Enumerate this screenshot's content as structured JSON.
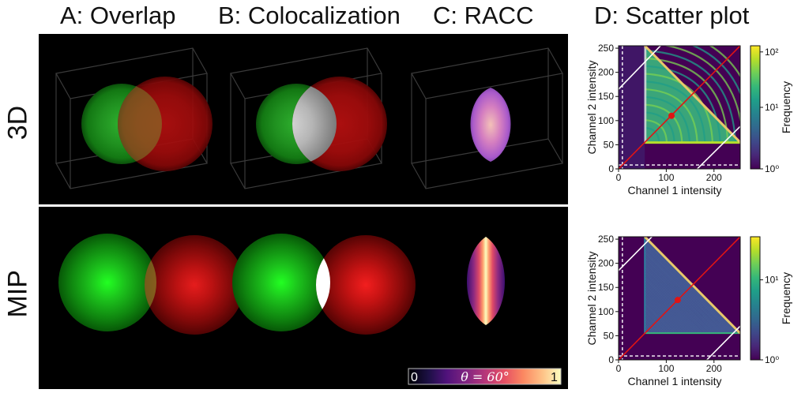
{
  "columns": [
    {
      "id": "A",
      "title": "A: Overlap"
    },
    {
      "id": "B",
      "title": "B: Colocalization"
    },
    {
      "id": "C",
      "title": "C: RACC"
    },
    {
      "id": "D",
      "title": "D: Scatter plot"
    }
  ],
  "rows": [
    {
      "id": "3d",
      "label": "3D"
    },
    {
      "id": "mip",
      "label": "MIP"
    }
  ],
  "colorbar_racc": {
    "min_label": "0",
    "max_label": "1",
    "theta_label": "θ = 60°",
    "colormap": "magma"
  },
  "colors": {
    "green_channel": "#18d418",
    "red_channel": "#e01010",
    "threshold_line": "#ffffff",
    "regression_line": "#e01414",
    "mean_point": "#e01414",
    "diagonal_band": "#e8c86a"
  },
  "chart_data": [
    {
      "type": "heatmap",
      "title": "",
      "xlabel": "Channel 1 intensity",
      "ylabel": "Channel 2 intensity",
      "xlim": [
        0,
        255
      ],
      "ylim": [
        0,
        255
      ],
      "xticks": [
        0,
        100,
        200
      ],
      "yticks": [
        0,
        50,
        100,
        150,
        200,
        250
      ],
      "colorbar": {
        "label": "Frequency",
        "scale": "log",
        "ticks": [
          "10⁰",
          "10¹",
          "10²"
        ],
        "colormap": "viridis"
      },
      "threshold_x": 8,
      "threshold_y": 8,
      "regression_line": [
        [
          0,
          0
        ],
        [
          255,
          255
        ]
      ],
      "mean_point": [
        111,
        110
      ],
      "max_sum_line": [
        [
          55,
          255
        ],
        [
          255,
          55
        ]
      ],
      "band_lines": [
        [
          [
            0,
            165
          ],
          [
            88,
            255
          ]
        ],
        [
          [
            165,
            0
          ],
          [
            255,
            88
          ]
        ]
      ]
    },
    {
      "type": "heatmap",
      "title": "",
      "xlabel": "Channel 1 intensity",
      "ylabel": "Channel 2 intensity",
      "xlim": [
        0,
        255
      ],
      "ylim": [
        0,
        255
      ],
      "xticks": [
        0,
        100,
        200
      ],
      "yticks": [
        0,
        50,
        100,
        150,
        200,
        250
      ],
      "colorbar": {
        "label": "Frequency",
        "scale": "log",
        "ticks": [
          "10⁰",
          "10¹"
        ],
        "colormap": "viridis"
      },
      "threshold_x": 8,
      "threshold_y": 8,
      "regression_line": [
        [
          0,
          0
        ],
        [
          255,
          255
        ]
      ],
      "mean_point": [
        124,
        124
      ],
      "max_sum_line": [
        [
          55,
          255
        ],
        [
          255,
          55
        ]
      ],
      "band_lines": [
        [
          [
            0,
            185
          ],
          [
            70,
            255
          ]
        ],
        [
          [
            185,
            0
          ],
          [
            255,
            70
          ]
        ]
      ]
    }
  ]
}
